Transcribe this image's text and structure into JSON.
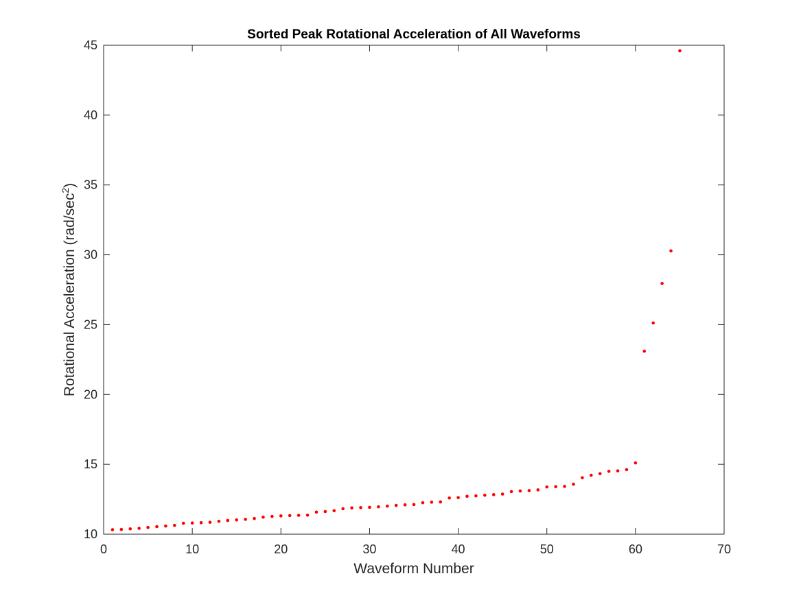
{
  "chart_data": {
    "type": "scatter",
    "title": "Sorted Peak Rotational Acceleration of All Waveforms",
    "xlabel": "Waveform Number",
    "ylabel": {
      "text": "Rotational Acceleration (rad/sec",
      "superscript": "2",
      "suffix": ")"
    },
    "xlim": [
      0,
      70
    ],
    "ylim": [
      10,
      45
    ],
    "xticks": [
      0,
      10,
      20,
      30,
      40,
      50,
      60,
      70
    ],
    "yticks": [
      10,
      15,
      20,
      25,
      30,
      35,
      40,
      45
    ],
    "grid": false,
    "marker_color": "#ff0000",
    "axis_color": "#262626",
    "series": [
      {
        "x": [
          1,
          2,
          3,
          4,
          5,
          6,
          7,
          8,
          9,
          10,
          11,
          12,
          13,
          14,
          15,
          16,
          17,
          18,
          19,
          20,
          21,
          22,
          23,
          24,
          25,
          26,
          27,
          28,
          29,
          30,
          31,
          32,
          33,
          34,
          35,
          36,
          37,
          38,
          39,
          40,
          41,
          42,
          43,
          44,
          45,
          46,
          47,
          48,
          49,
          50,
          51,
          52,
          53,
          54,
          55,
          56,
          57,
          58,
          59,
          60,
          61,
          62,
          63,
          64,
          65
        ],
        "y": [
          10.32,
          10.34,
          10.38,
          10.42,
          10.48,
          10.54,
          10.58,
          10.63,
          10.78,
          10.8,
          10.82,
          10.85,
          10.92,
          10.98,
          11.02,
          11.06,
          11.12,
          11.22,
          11.27,
          11.31,
          11.33,
          11.35,
          11.36,
          11.58,
          11.62,
          11.68,
          11.82,
          11.88,
          11.9,
          11.92,
          11.96,
          12.01,
          12.06,
          12.1,
          12.12,
          12.25,
          12.29,
          12.31,
          12.59,
          12.62,
          12.71,
          12.74,
          12.79,
          12.83,
          12.87,
          13.05,
          13.09,
          13.12,
          13.17,
          13.38,
          13.4,
          13.42,
          13.58,
          14.04,
          14.22,
          14.33,
          14.5,
          14.53,
          14.62,
          15.1,
          23.1,
          25.12,
          27.95,
          30.28,
          44.6
        ]
      }
    ]
  }
}
